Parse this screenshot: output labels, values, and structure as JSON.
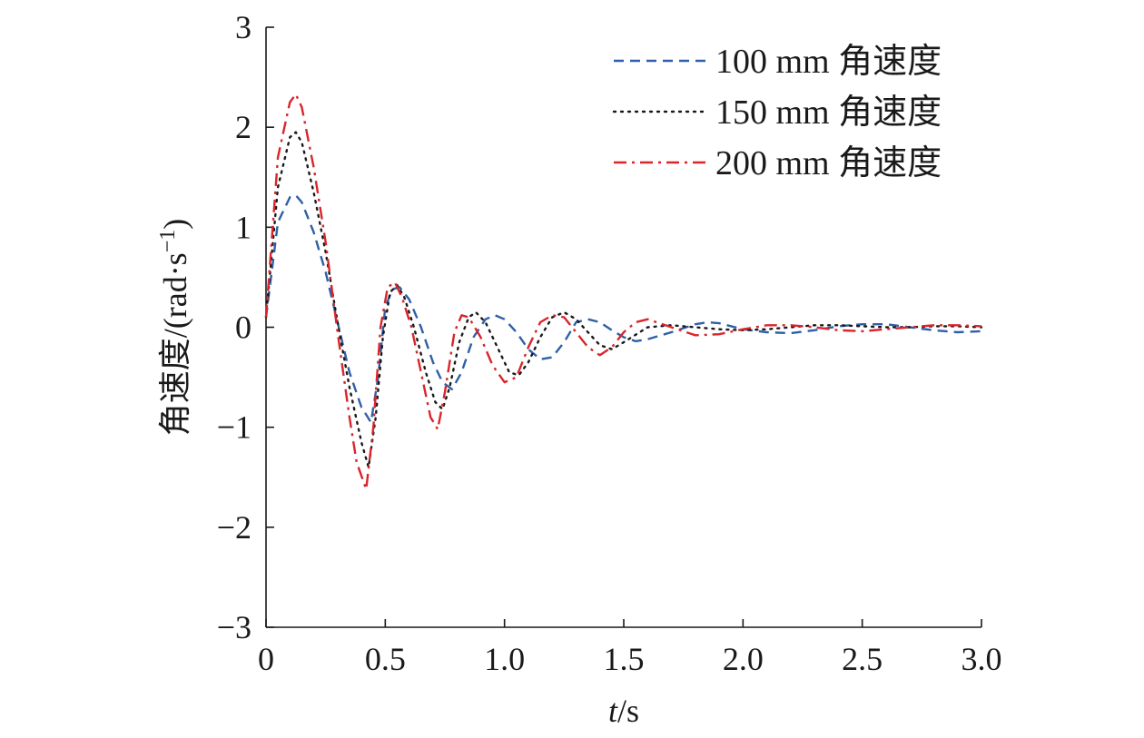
{
  "chart_data": {
    "type": "line",
    "xlabel_italic": "t",
    "xlabel_unit": "/s",
    "ylabel": "角速度/(rad·s",
    "ylabel_sup": "−1",
    "ylabel_end": ")",
    "xlim": [
      0,
      3.0
    ],
    "ylim": [
      -3,
      3
    ],
    "x_ticks": [
      "0",
      "0.5",
      "1.0",
      "1.5",
      "2.0",
      "2.5",
      "3.0"
    ],
    "y_ticks": [
      "−3",
      "−2",
      "−1",
      "0",
      "1",
      "2",
      "3"
    ],
    "grid": false,
    "legend_position": "top-right",
    "series": [
      {
        "name": "100 mm 角速度",
        "color": "#2f5fa8",
        "dash": "dashed",
        "x": [
          0,
          0.05,
          0.1,
          0.125,
          0.15,
          0.2,
          0.25,
          0.3,
          0.35,
          0.4,
          0.44,
          0.47,
          0.5,
          0.53,
          0.56,
          0.6,
          0.65,
          0.7,
          0.74,
          0.78,
          0.82,
          0.87,
          0.92,
          0.96,
          1.0,
          1.05,
          1.1,
          1.15,
          1.2,
          1.25,
          1.3,
          1.35,
          1.4,
          1.45,
          1.5,
          1.55,
          1.6,
          1.7,
          1.8,
          1.85,
          1.9,
          2.0,
          2.1,
          2.2,
          2.3,
          2.4,
          2.5,
          2.6,
          2.7,
          2.8,
          2.9,
          3.0
        ],
        "y": [
          0.1,
          1.05,
          1.3,
          1.32,
          1.25,
          0.95,
          0.55,
          0.05,
          -0.45,
          -0.8,
          -0.95,
          -0.5,
          0.2,
          0.38,
          0.4,
          0.28,
          0.0,
          -0.35,
          -0.55,
          -0.62,
          -0.45,
          -0.1,
          0.08,
          0.12,
          0.08,
          -0.05,
          -0.22,
          -0.32,
          -0.3,
          -0.15,
          0.05,
          0.08,
          0.05,
          -0.03,
          -0.1,
          -0.14,
          -0.12,
          -0.05,
          0.03,
          0.05,
          0.04,
          -0.02,
          -0.05,
          -0.06,
          -0.03,
          0.01,
          0.03,
          0.03,
          0.0,
          -0.03,
          -0.05,
          -0.04
        ]
      },
      {
        "name": "150 mm 角速度",
        "color": "#1a1a1a",
        "dash": "dotted",
        "x": [
          0,
          0.05,
          0.1,
          0.125,
          0.15,
          0.2,
          0.25,
          0.3,
          0.35,
          0.4,
          0.43,
          0.46,
          0.49,
          0.52,
          0.55,
          0.58,
          0.62,
          0.67,
          0.71,
          0.74,
          0.77,
          0.81,
          0.85,
          0.88,
          0.92,
          0.97,
          1.02,
          1.06,
          1.1,
          1.15,
          1.2,
          1.25,
          1.3,
          1.35,
          1.4,
          1.45,
          1.5,
          1.6,
          1.7,
          1.8,
          1.9,
          2.0,
          2.1,
          2.2,
          2.3,
          2.4,
          2.5,
          2.6,
          2.7,
          2.8,
          2.9,
          3.0
        ],
        "y": [
          0.1,
          1.4,
          1.9,
          1.95,
          1.85,
          1.35,
          0.75,
          0.05,
          -0.6,
          -1.15,
          -1.4,
          -0.9,
          -0.1,
          0.35,
          0.42,
          0.3,
          0.0,
          -0.45,
          -0.75,
          -0.82,
          -0.6,
          -0.15,
          0.1,
          0.15,
          0.05,
          -0.2,
          -0.45,
          -0.48,
          -0.35,
          -0.1,
          0.1,
          0.15,
          0.08,
          -0.05,
          -0.18,
          -0.22,
          -0.15,
          0.0,
          0.02,
          0.0,
          -0.02,
          -0.03,
          -0.02,
          0.0,
          0.02,
          0.02,
          0.01,
          0.0,
          0.0,
          0.01,
          0.01,
          0.0
        ]
      },
      {
        "name": "200 mm 角速度",
        "color": "#d8262b",
        "dash": "dashdot",
        "x": [
          0,
          0.05,
          0.1,
          0.125,
          0.15,
          0.2,
          0.25,
          0.3,
          0.35,
          0.38,
          0.42,
          0.45,
          0.48,
          0.51,
          0.54,
          0.57,
          0.61,
          0.65,
          0.69,
          0.72,
          0.75,
          0.79,
          0.82,
          0.85,
          0.9,
          0.95,
          1.0,
          1.05,
          1.1,
          1.15,
          1.2,
          1.25,
          1.3,
          1.35,
          1.4,
          1.45,
          1.5,
          1.55,
          1.6,
          1.7,
          1.8,
          1.9,
          2.0,
          2.1,
          2.2,
          2.3,
          2.4,
          2.5,
          2.6,
          2.7,
          2.8,
          2.9,
          3.0
        ],
        "y": [
          0.1,
          1.7,
          2.25,
          2.33,
          2.2,
          1.6,
          0.85,
          -0.05,
          -0.9,
          -1.35,
          -1.62,
          -1.0,
          0.0,
          0.4,
          0.45,
          0.3,
          0.0,
          -0.45,
          -0.9,
          -1.02,
          -0.65,
          -0.05,
          0.12,
          0.1,
          -0.1,
          -0.38,
          -0.55,
          -0.5,
          -0.2,
          0.05,
          0.12,
          0.1,
          -0.05,
          -0.2,
          -0.28,
          -0.2,
          -0.05,
          0.05,
          0.08,
          0.0,
          -0.08,
          -0.07,
          -0.02,
          0.02,
          0.02,
          0.0,
          -0.03,
          -0.04,
          -0.02,
          0.0,
          0.02,
          0.02,
          0.01
        ]
      }
    ]
  }
}
